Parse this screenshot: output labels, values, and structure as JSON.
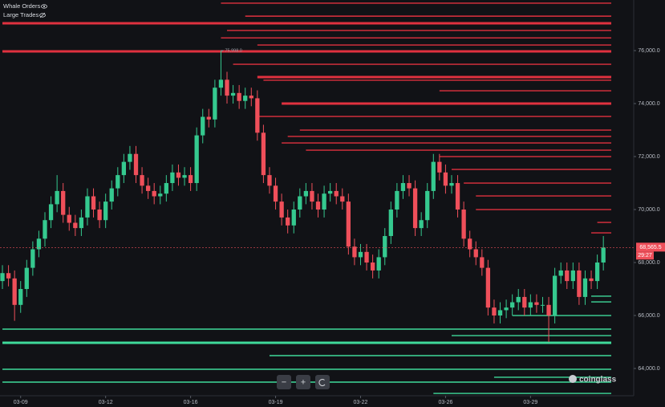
{
  "chart_data": {
    "type": "candlestick",
    "legend": [
      {
        "label": "Whale Orders",
        "visible": true
      },
      {
        "label": "Large Trades",
        "visible": false
      }
    ],
    "up_color": "#35c98f",
    "down_color": "#ef4f5a",
    "ask_color": "#e0313f",
    "bid_color": "#3fd99a",
    "xlim": [
      -0.4,
      104
    ],
    "ylim": [
      62970,
      77910
    ],
    "xticks": [
      {
        "value": 3,
        "label": "03-09"
      },
      {
        "value": 17,
        "label": "03-12"
      },
      {
        "value": 31,
        "label": "03-16"
      },
      {
        "value": 45,
        "label": "03-19"
      },
      {
        "value": 59,
        "label": "03-22"
      },
      {
        "value": 73,
        "label": "03-26"
      },
      {
        "value": 87,
        "label": "03-29"
      }
    ],
    "yticks": [
      {
        "value": 64000,
        "label": "64,000.0"
      },
      {
        "value": 66000,
        "label": "66,000.0"
      },
      {
        "value": 68000,
        "label": "68,000.0"
      },
      {
        "value": 70000,
        "label": "70,000.0"
      },
      {
        "value": 72000,
        "label": "72,000.0"
      },
      {
        "value": 74000,
        "label": "74,000.0"
      },
      {
        "value": 76000,
        "label": "76,000.0"
      }
    ],
    "open": [
      67300,
      67600,
      67400,
      66400,
      67000,
      67800,
      68500,
      68900,
      69600,
      70200,
      70700,
      69800,
      69500,
      69300,
      69700,
      70500,
      70000,
      69600,
      70300,
      70800,
      71300,
      71800,
      72100,
      71300,
      70900,
      70700,
      70500,
      70600,
      71000,
      71400,
      71200,
      71300,
      71000,
      72800,
      73500,
      73400,
      74600,
      74900,
      74300,
      74400,
      74100,
      74300,
      74200,
      72900,
      71300,
      70900,
      70300,
      69700,
      69400,
      70000,
      70500,
      70700,
      70300,
      70000,
      70600,
      70700,
      70500,
      70300,
      68600,
      68200,
      68400,
      68000,
      67700,
      68200,
      69000,
      70000,
      70700,
      71000,
      70800,
      69300,
      69600,
      70700,
      71800,
      71400,
      70900,
      71000,
      70000,
      68900,
      68500,
      68200,
      67800,
      66300,
      66000,
      66200,
      66300,
      66500,
      66700,
      66300,
      66500,
      66400,
      66400,
      66000,
      67500,
      67700,
      67300,
      67700,
      66700,
      67400,
      67300,
      68000
    ],
    "high": [
      67900,
      67900,
      67700,
      67300,
      68100,
      68800,
      69200,
      69900,
      70500,
      71300,
      71000,
      70100,
      69800,
      70000,
      70800,
      70800,
      70300,
      70600,
      71100,
      71600,
      72100,
      72400,
      72400,
      71600,
      71200,
      71000,
      70900,
      71300,
      71700,
      71700,
      71600,
      71600,
      73100,
      73800,
      73800,
      74900,
      75998,
      75200,
      74700,
      74700,
      74600,
      74600,
      74500,
      73200,
      71600,
      71200,
      70600,
      70000,
      70300,
      70800,
      71000,
      71000,
      70600,
      70900,
      71000,
      71000,
      70800,
      70600,
      68900,
      68700,
      68700,
      68300,
      68500,
      69300,
      70300,
      71000,
      71300,
      71300,
      71100,
      69900,
      71000,
      72100,
      72100,
      71700,
      71300,
      71300,
      70300,
      69200,
      68800,
      68500,
      68100,
      66600,
      66500,
      66600,
      66800,
      67000,
      67000,
      66800,
      66800,
      66700,
      66700,
      67800,
      68000,
      68000,
      68000,
      68000,
      67700,
      67700,
      68300,
      69000
    ],
    "low": [
      67000,
      67100,
      65800,
      66100,
      66700,
      67500,
      68200,
      68600,
      69300,
      69900,
      69500,
      69200,
      69000,
      69000,
      69400,
      69700,
      69300,
      69300,
      70000,
      70500,
      71000,
      71500,
      71000,
      70600,
      70400,
      70200,
      70200,
      70300,
      70700,
      70900,
      70900,
      70700,
      70700,
      72500,
      73100,
      73100,
      74300,
      74000,
      74000,
      73800,
      73800,
      73900,
      72600,
      71000,
      70600,
      70000,
      69400,
      69100,
      69100,
      69700,
      70200,
      70000,
      69700,
      69700,
      70300,
      70200,
      70000,
      68300,
      67900,
      67900,
      67700,
      67400,
      67400,
      67900,
      68700,
      69700,
      70400,
      70500,
      69000,
      69000,
      69300,
      70400,
      71100,
      70600,
      70600,
      69700,
      68600,
      68200,
      67900,
      67500,
      66000,
      65700,
      65700,
      65900,
      66000,
      66200,
      66000,
      66000,
      66100,
      66100,
      65000,
      65700,
      67200,
      67000,
      67000,
      66400,
      66400,
      67000,
      67000,
      67700
    ],
    "close": [
      67600,
      67400,
      66400,
      67000,
      67800,
      68500,
      68900,
      69600,
      70200,
      70700,
      69800,
      69500,
      69300,
      69700,
      70500,
      70000,
      69600,
      70300,
      70800,
      71300,
      71800,
      72100,
      71300,
      70900,
      70700,
      70500,
      70600,
      71000,
      71400,
      71200,
      71300,
      71000,
      72800,
      73500,
      73400,
      74600,
      74900,
      74300,
      74400,
      74100,
      74300,
      74200,
      72900,
      71300,
      70900,
      70300,
      69700,
      69400,
      70000,
      70500,
      70700,
      70300,
      70000,
      70600,
      70700,
      70500,
      70300,
      68600,
      68200,
      68400,
      68000,
      67700,
      68200,
      69000,
      70000,
      70700,
      71000,
      70800,
      69300,
      69600,
      70700,
      71800,
      71400,
      70900,
      71000,
      70000,
      68900,
      68500,
      68200,
      67800,
      66300,
      66000,
      66200,
      66300,
      66500,
      66700,
      66300,
      66500,
      66400,
      66400,
      66000,
      67500,
      67700,
      67300,
      67700,
      66700,
      67400,
      67300,
      68000,
      68565
    ],
    "asks": [
      {
        "price": 77790,
        "start": 36
      },
      {
        "price": 77300,
        "start": 40
      },
      {
        "price": 77030,
        "start": 0,
        "large": true
      },
      {
        "price": 76760,
        "start": 37
      },
      {
        "price": 76480,
        "start": 36
      },
      {
        "price": 76210,
        "start": 42
      },
      {
        "price": 75970,
        "start": 0,
        "large": true
      },
      {
        "price": 75485,
        "start": 38
      },
      {
        "price": 75000,
        "start": 42,
        "large": true
      },
      {
        "price": 74880,
        "start": 43
      },
      {
        "price": 74485,
        "start": 72
      },
      {
        "price": 74000,
        "start": 46,
        "large": true
      },
      {
        "price": 73515,
        "start": 42
      },
      {
        "price": 73000,
        "start": 49
      },
      {
        "price": 72760,
        "start": 47
      },
      {
        "price": 72515,
        "start": 46
      },
      {
        "price": 72240,
        "start": 50
      },
      {
        "price": 72000,
        "start": 72
      },
      {
        "price": 71515,
        "start": 74
      },
      {
        "price": 71000,
        "start": 76
      },
      {
        "price": 70515,
        "start": 78
      },
      {
        "price": 70000,
        "start": 78
      },
      {
        "price": 69515,
        "start": 98
      },
      {
        "price": 69120,
        "start": 97
      }
    ],
    "bids": [
      {
        "price": 66730,
        "start": 97
      },
      {
        "price": 66515,
        "start": 97
      },
      {
        "price": 66000,
        "start": 84
      },
      {
        "price": 65485,
        "start": 0
      },
      {
        "price": 65240,
        "start": 74
      },
      {
        "price": 64970,
        "start": 0,
        "large": true
      },
      {
        "price": 64485,
        "start": 44
      },
      {
        "price": 63970,
        "start": 0
      },
      {
        "price": 63670,
        "start": 81
      },
      {
        "price": 63485,
        "start": 0
      },
      {
        "price": 63060,
        "start": 71
      }
    ],
    "annotations": [
      {
        "text": "75,998.0",
        "x": 36,
        "y": 75998
      }
    ],
    "last_price": {
      "value": 68565.5,
      "label": "68,565.5"
    },
    "countdown": "29:27",
    "controls": [
      "−",
      "+"
    ],
    "brand": "coinglass"
  }
}
